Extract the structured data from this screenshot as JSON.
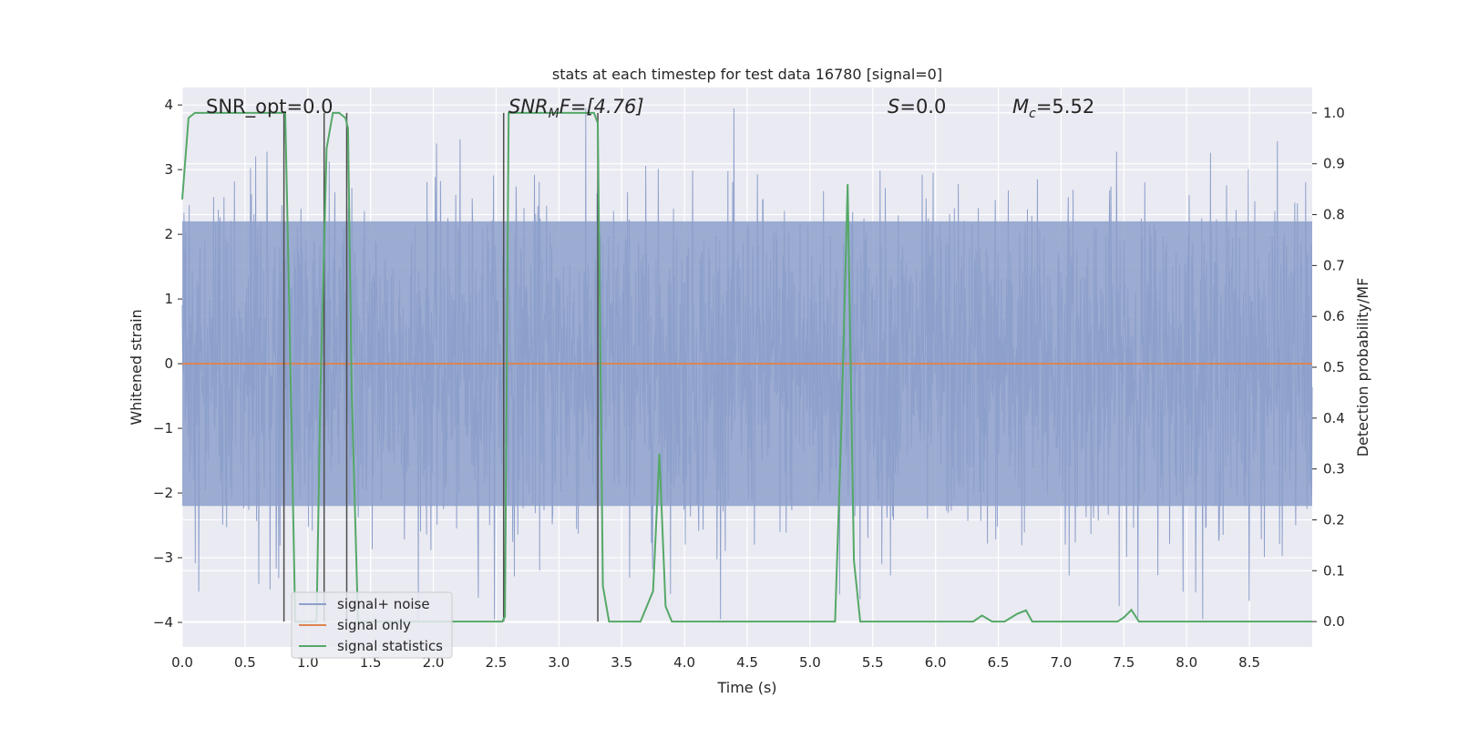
{
  "chart_data": {
    "type": "line",
    "title": "stats at each timestep for test data 16780 [signal=0]",
    "xlabel": "Time (s)",
    "ylabel_left": "Whitened strain",
    "ylabel_right": "Detection probability/MF",
    "xlim": [
      0,
      9
    ],
    "ylim_left": [
      -4.38,
      4.27
    ],
    "ylim_right": [
      -0.05,
      1.05
    ],
    "x_ticks": [
      "0.0",
      "0.5",
      "1.0",
      "1.5",
      "2.0",
      "2.5",
      "3.0",
      "3.5",
      "4.0",
      "4.5",
      "5.0",
      "5.5",
      "6.0",
      "6.5",
      "7.0",
      "7.5",
      "8.0",
      "8.5"
    ],
    "y_ticks_left": [
      "−4",
      "−3",
      "−2",
      "−1",
      "0",
      "1",
      "2",
      "3",
      "4"
    ],
    "y_ticks_right": [
      "0.0",
      "0.1",
      "0.2",
      "0.3",
      "0.4",
      "0.5",
      "0.6",
      "0.7",
      "0.8",
      "0.9",
      "1.0"
    ],
    "grid": true,
    "legend_placement": "lower-left",
    "annotations": {
      "snr_opt": "SNR_opt=0.0",
      "snr_mf_main": "SNR",
      "snr_mf_sub": "M",
      "snr_mf_tail": "F=[4.76]",
      "s_main": "S",
      "s_tail": "=0.0",
      "mc_main": "M",
      "mc_sub": "c",
      "mc_tail": "=5.52"
    },
    "series": [
      {
        "name": "signal+ noise",
        "color": "#8da0cb",
        "axis": "left",
        "description_values": "whitened noise, roughly ±2.5 with spikes to ±4"
      },
      {
        "name": "signal only",
        "color": "#dd8452",
        "axis": "left",
        "x": [
          0,
          9
        ],
        "y": [
          0,
          0
        ]
      },
      {
        "name": "signal statistics",
        "color": "#55a868",
        "axis": "right",
        "x": [
          0.0,
          0.05,
          0.1,
          0.15,
          0.8,
          0.82,
          0.85,
          0.9,
          1.0,
          1.07,
          1.1,
          1.15,
          1.2,
          1.25,
          1.3,
          1.32,
          1.35,
          1.4,
          1.5,
          2.0,
          2.5,
          2.55,
          2.57,
          2.6,
          2.65,
          3.2,
          3.28,
          3.31,
          3.35,
          3.4,
          3.5,
          3.65,
          3.75,
          3.8,
          3.85,
          3.9,
          4.0,
          4.5,
          5.0,
          5.15,
          5.2,
          5.25,
          5.3,
          5.35,
          5.4,
          5.5,
          6.0,
          6.3,
          6.37,
          6.45,
          6.55,
          6.65,
          6.72,
          6.77,
          6.82,
          7.0,
          7.45,
          7.5,
          7.56,
          7.62,
          8.0,
          9.0
        ],
        "y": [
          0.83,
          0.99,
          1.0,
          1.0,
          1.0,
          1.0,
          0.65,
          0.0,
          0.0,
          0.0,
          0.45,
          0.93,
          1.0,
          1.0,
          0.99,
          0.97,
          0.45,
          0.0,
          0.0,
          0.0,
          0.0,
          0.0,
          0.01,
          1.0,
          1.0,
          1.0,
          1.0,
          0.98,
          0.07,
          0.0,
          0.0,
          0.0,
          0.06,
          0.33,
          0.03,
          0.0,
          0.0,
          0.0,
          0.0,
          0.0,
          0.0,
          0.38,
          0.86,
          0.12,
          0.0,
          0.0,
          0.0,
          0.0,
          0.012,
          0.0,
          0.0,
          0.015,
          0.022,
          0.0,
          0.0,
          0.0,
          0.0,
          0.008,
          0.023,
          0.0,
          0.0,
          0.0
        ]
      }
    ],
    "vertical_lines_x": [
      0.81,
      1.13,
      1.31,
      2.56,
      3.31
    ],
    "legend": [
      "signal+ noise",
      "signal only",
      "signal statistics"
    ]
  },
  "colors": {
    "plot_bg": "#eaeaf2",
    "grid": "#ffffff",
    "noise": "#8da0cb",
    "signal": "#dd8452",
    "stats": "#55a868",
    "vline": "#4d4d4d"
  }
}
